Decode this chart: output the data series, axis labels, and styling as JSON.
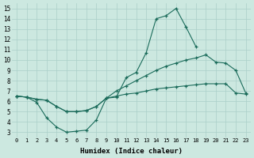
{
  "xlabel": "Humidex (Indice chaleur)",
  "bg_color": "#cce8e0",
  "grid_color": "#aacfc8",
  "line_color": "#1a6b5a",
  "xlim": [
    -0.5,
    23.5
  ],
  "ylim": [
    2.5,
    15.5
  ],
  "xticks": [
    0,
    1,
    2,
    3,
    4,
    5,
    6,
    7,
    8,
    9,
    10,
    11,
    12,
    13,
    14,
    15,
    16,
    17,
    18,
    19,
    20,
    21,
    22,
    23
  ],
  "yticks": [
    3,
    4,
    5,
    6,
    7,
    8,
    9,
    10,
    11,
    12,
    13,
    14,
    15
  ],
  "line1_x": [
    0,
    1,
    2,
    3,
    4,
    5,
    6,
    7,
    8,
    9,
    10,
    11,
    12,
    13,
    14,
    15,
    16,
    17,
    18,
    19,
    20,
    21,
    22,
    23
  ],
  "line1_y": [
    6.5,
    6.4,
    5.9,
    4.4,
    3.5,
    3.0,
    3.1,
    3.2,
    4.2,
    6.3,
    6.4,
    8.3,
    8.8,
    10.7,
    14.0,
    14.3,
    15.0,
    13.2,
    11.3,
    null,
    null,
    null,
    null,
    null
  ],
  "line2_x": [
    0,
    1,
    2,
    3,
    4,
    5,
    6,
    7,
    8,
    9,
    10,
    11,
    12,
    13,
    14,
    15,
    16,
    17,
    18,
    19,
    20,
    21,
    22,
    23
  ],
  "line2_y": [
    6.5,
    6.4,
    6.2,
    6.1,
    5.5,
    5.0,
    5.0,
    5.1,
    5.5,
    6.3,
    7.0,
    7.5,
    8.0,
    8.5,
    9.0,
    9.4,
    9.7,
    10.0,
    10.2,
    10.5,
    9.8,
    9.7,
    9.0,
    6.8
  ],
  "line3_x": [
    0,
    1,
    2,
    3,
    4,
    5,
    6,
    7,
    8,
    9,
    10,
    11,
    12,
    13,
    14,
    15,
    16,
    17,
    18,
    19,
    20,
    21,
    22,
    23
  ],
  "line3_y": [
    6.5,
    6.4,
    6.2,
    6.1,
    5.5,
    5.0,
    5.0,
    5.1,
    5.5,
    6.3,
    6.5,
    6.7,
    6.8,
    7.0,
    7.2,
    7.3,
    7.4,
    7.5,
    7.6,
    7.7,
    7.7,
    7.7,
    6.8,
    6.7
  ]
}
